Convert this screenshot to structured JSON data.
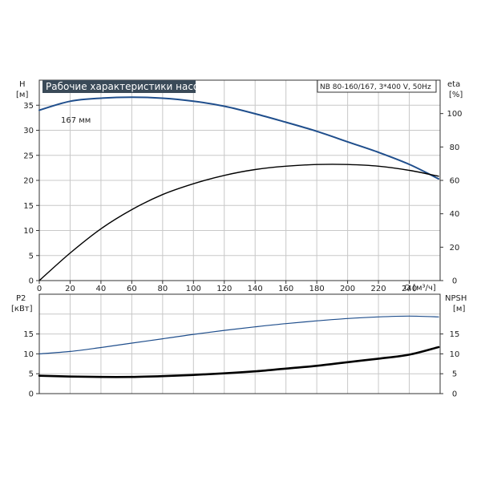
{
  "chart_data": [
    {
      "type": "line",
      "title": "Рабочие характеристики насоса",
      "subtitle": "NB 80-160/167, 3*400 V, 50Hz",
      "xlabel": "Q [м³/ч]",
      "ylabel_left": "H",
      "ylabel_left_unit": "[м]",
      "ylabel_right": "eta",
      "ylabel_right_unit": "[%]",
      "xlim": [
        0,
        260
      ],
      "ylim_left": [
        0,
        40
      ],
      "ylim_right": [
        0,
        120
      ],
      "x_ticks": [
        "0",
        "20",
        "40",
        "60",
        "80",
        "100",
        "120",
        "140",
        "160",
        "180",
        "200",
        "220",
        "240"
      ],
      "y_ticks_left": [
        "0",
        "5",
        "10",
        "15",
        "20",
        "25",
        "30",
        "35"
      ],
      "y_ticks_right": [
        "0",
        "20",
        "40",
        "60",
        "80",
        "100"
      ],
      "grid": true,
      "series": [
        {
          "name": "167 мм",
          "axis": "left",
          "color": "#1f4e8c",
          "x": [
            0,
            20,
            40,
            60,
            80,
            100,
            120,
            140,
            160,
            180,
            200,
            220,
            240,
            259
          ],
          "y": [
            34,
            35.8,
            36.4,
            36.6,
            36.4,
            35.8,
            34.8,
            33.3,
            31.6,
            29.8,
            27.7,
            25.6,
            23.2,
            20.3
          ]
        },
        {
          "name": "",
          "axis": "right",
          "color": "#000000",
          "x": [
            0,
            20,
            40,
            60,
            80,
            100,
            120,
            140,
            160,
            180,
            200,
            220,
            240,
            259
          ],
          "y": [
            0,
            16.5,
            31,
            42.5,
            51.5,
            58,
            63,
            66.5,
            68.5,
            69.5,
            69.5,
            68.5,
            66,
            62.5
          ]
        }
      ]
    },
    {
      "type": "line",
      "ylabel_left": "P2",
      "ylabel_left_unit": "[кВт]",
      "ylabel_right": "NPSH",
      "ylabel_right_unit": "[м]",
      "xlim": [
        0,
        260
      ],
      "ylim_left": [
        0,
        25
      ],
      "ylim_right": [
        0,
        25
      ],
      "y_ticks_left": [
        "0",
        "5",
        "10",
        "15"
      ],
      "y_ticks_right": [
        "0",
        "5",
        "10",
        "15"
      ],
      "grid": true,
      "series": [
        {
          "name": "",
          "axis": "left",
          "color": "#1f4e8c",
          "x": [
            0,
            20,
            40,
            60,
            80,
            100,
            120,
            140,
            160,
            180,
            200,
            220,
            240,
            259
          ],
          "y": [
            10,
            10.6,
            11.6,
            12.7,
            13.8,
            14.9,
            15.9,
            16.8,
            17.6,
            18.3,
            18.9,
            19.3,
            19.5,
            19.3
          ]
        },
        {
          "name": "",
          "axis": "right",
          "color": "#000000",
          "x": [
            0,
            20,
            40,
            60,
            80,
            100,
            120,
            140,
            160,
            180,
            200,
            220,
            240,
            259
          ],
          "y": [
            4.5,
            4.3,
            4.2,
            4.2,
            4.4,
            4.7,
            5.1,
            5.6,
            6.3,
            7.0,
            7.9,
            8.8,
            9.8,
            11.7
          ]
        }
      ]
    }
  ]
}
